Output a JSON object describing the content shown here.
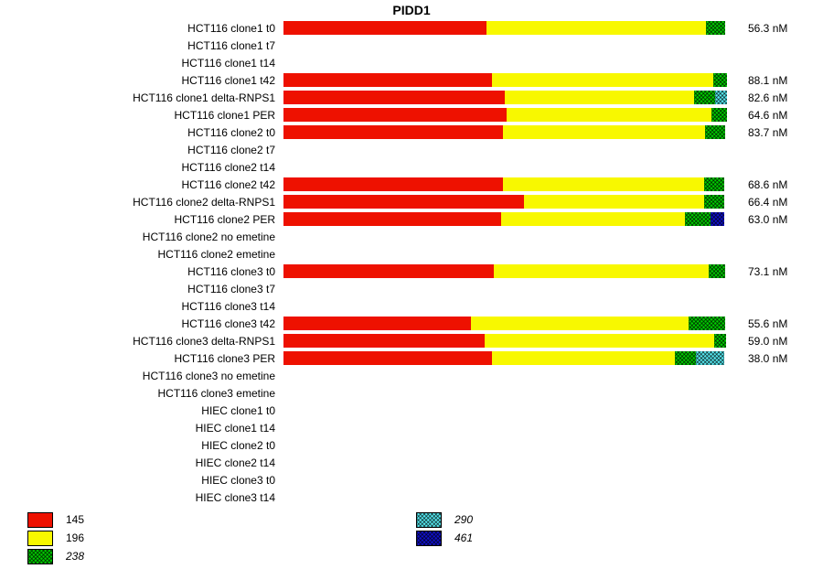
{
  "title": "PIDD1",
  "value_unit": "nM",
  "colors": {
    "red": "#ee1100",
    "yellow": "#f8f800",
    "green": "#00cc00",
    "cyan": "#55e8f0",
    "blue": "#1010cc"
  },
  "patterned_colors": [
    "green",
    "cyan",
    "blue"
  ],
  "legend": {
    "columns": [
      {
        "items": [
          {
            "label": "145",
            "color": "red",
            "pattern": false,
            "italic": false
          },
          {
            "label": "196",
            "color": "yellow",
            "pattern": false,
            "italic": false
          },
          {
            "label": "238",
            "color": "green",
            "pattern": true,
            "italic": true
          }
        ]
      },
      {
        "items": [
          {
            "label": "290",
            "color": "cyan",
            "pattern": true,
            "italic": true
          },
          {
            "label": "461",
            "color": "blue",
            "pattern": true,
            "italic": true
          }
        ]
      }
    ]
  },
  "chart_data": {
    "type": "bar",
    "orientation": "horizontal",
    "stacked": true,
    "title": "PIDD1",
    "series_keys": [
      "145",
      "196",
      "238",
      "290",
      "461"
    ],
    "series_color_map": {
      "145": "red",
      "196": "yellow",
      "238": "green",
      "290": "cyan",
      "461": "blue"
    },
    "note": "segment pct = estimated fraction of full bar track width",
    "rows": [
      {
        "label": "HCT116 clone1 t0",
        "value": 56.3,
        "value_label": "56.3 nM",
        "segments": [
          {
            "series": "145",
            "color": "red",
            "pct": 45.6
          },
          {
            "series": "196",
            "color": "yellow",
            "pct": 49.2
          },
          {
            "series": "238",
            "color": "green",
            "pct": 4.4
          }
        ]
      },
      {
        "label": "HCT116 clone1 t7",
        "value": null,
        "value_label": "",
        "segments": []
      },
      {
        "label": "HCT116 clone1 t14",
        "value": null,
        "value_label": "",
        "segments": []
      },
      {
        "label": "HCT116 clone1 t42",
        "value": 88.1,
        "value_label": "88.1 nM",
        "segments": [
          {
            "series": "145",
            "color": "red",
            "pct": 46.8
          },
          {
            "series": "196",
            "color": "yellow",
            "pct": 49.8
          },
          {
            "series": "238",
            "color": "green",
            "pct": 3.0
          }
        ]
      },
      {
        "label": "HCT116 clone1 delta-RNPS1",
        "value": 82.6,
        "value_label": "82.6 nM",
        "segments": [
          {
            "series": "145",
            "color": "red",
            "pct": 49.7
          },
          {
            "series": "196",
            "color": "yellow",
            "pct": 42.6
          },
          {
            "series": "238",
            "color": "green",
            "pct": 4.6
          },
          {
            "series": "290",
            "color": "cyan",
            "pct": 2.7
          }
        ]
      },
      {
        "label": "HCT116 clone1 PER",
        "value": 64.6,
        "value_label": "64.6 nM",
        "segments": [
          {
            "series": "145",
            "color": "red",
            "pct": 50.1
          },
          {
            "series": "196",
            "color": "yellow",
            "pct": 45.9
          },
          {
            "series": "238",
            "color": "green",
            "pct": 3.6
          }
        ]
      },
      {
        "label": "HCT116 clone2 t0",
        "value": 83.7,
        "value_label": "83.7 nM",
        "segments": [
          {
            "series": "145",
            "color": "red",
            "pct": 49.3
          },
          {
            "series": "196",
            "color": "yellow",
            "pct": 45.3
          },
          {
            "series": "238",
            "color": "green",
            "pct": 4.6
          }
        ]
      },
      {
        "label": "HCT116 clone2 t7",
        "value": null,
        "value_label": "",
        "segments": []
      },
      {
        "label": "HCT116 clone2 t14",
        "value": null,
        "value_label": "",
        "segments": []
      },
      {
        "label": "HCT116 clone2 t42",
        "value": 68.6,
        "value_label": "68.6 nM",
        "segments": [
          {
            "series": "145",
            "color": "red",
            "pct": 49.3
          },
          {
            "series": "196",
            "color": "yellow",
            "pct": 45.1
          },
          {
            "series": "238",
            "color": "green",
            "pct": 4.6
          }
        ]
      },
      {
        "label": "HCT116 clone2 delta-RNPS1",
        "value": 66.4,
        "value_label": "66.4 nM",
        "segments": [
          {
            "series": "145",
            "color": "red",
            "pct": 54.0
          },
          {
            "series": "196",
            "color": "yellow",
            "pct": 40.4
          },
          {
            "series": "238",
            "color": "green",
            "pct": 4.6
          }
        ]
      },
      {
        "label": "HCT116 clone2 PER",
        "value": 63.0,
        "value_label": "63.0 nM",
        "segments": [
          {
            "series": "145",
            "color": "red",
            "pct": 48.9
          },
          {
            "series": "196",
            "color": "yellow",
            "pct": 41.2
          },
          {
            "series": "238",
            "color": "green",
            "pct": 5.8
          },
          {
            "series": "461",
            "color": "blue",
            "pct": 3.1
          }
        ]
      },
      {
        "label": "HCT116 clone2 no emetine",
        "value": null,
        "value_label": "",
        "segments": []
      },
      {
        "label": "HCT116 clone2 emetine",
        "value": null,
        "value_label": "",
        "segments": []
      },
      {
        "label": "HCT116 clone3 t0",
        "value": 73.1,
        "value_label": "73.1 nM",
        "segments": [
          {
            "series": "145",
            "color": "red",
            "pct": 47.2
          },
          {
            "series": "196",
            "color": "yellow",
            "pct": 48.2
          },
          {
            "series": "238",
            "color": "green",
            "pct": 3.7
          }
        ]
      },
      {
        "label": "HCT116 clone3 t7",
        "value": null,
        "value_label": "",
        "segments": []
      },
      {
        "label": "HCT116 clone3 t14",
        "value": null,
        "value_label": "",
        "segments": []
      },
      {
        "label": "HCT116 clone3 t42",
        "value": 55.6,
        "value_label": "55.6 nM",
        "segments": [
          {
            "series": "145",
            "color": "red",
            "pct": 42.1
          },
          {
            "series": "196",
            "color": "yellow",
            "pct": 48.8
          },
          {
            "series": "238",
            "color": "green",
            "pct": 8.2
          }
        ]
      },
      {
        "label": "HCT116 clone3 delta-RNPS1",
        "value": 59.0,
        "value_label": "59.0 nM",
        "segments": [
          {
            "series": "145",
            "color": "red",
            "pct": 45.2
          },
          {
            "series": "196",
            "color": "yellow",
            "pct": 51.6
          },
          {
            "series": "238",
            "color": "green",
            "pct": 2.5
          }
        ]
      },
      {
        "label": "HCT116 clone3 PER",
        "value": 38.0,
        "value_label": "38.0 nM",
        "segments": [
          {
            "series": "145",
            "color": "red",
            "pct": 46.8
          },
          {
            "series": "196",
            "color": "yellow",
            "pct": 41.0
          },
          {
            "series": "238",
            "color": "green",
            "pct": 4.9
          },
          {
            "series": "290",
            "color": "cyan",
            "pct": 6.3
          }
        ]
      },
      {
        "label": "HCT116 clone3 no emetine",
        "value": null,
        "value_label": "",
        "segments": []
      },
      {
        "label": "HCT116 clone3 emetine",
        "value": null,
        "value_label": "",
        "segments": []
      },
      {
        "label": "HIEC clone1 t0",
        "value": null,
        "value_label": "",
        "segments": []
      },
      {
        "label": "HIEC clone1 t14",
        "value": null,
        "value_label": "",
        "segments": []
      },
      {
        "label": "HIEC clone2 t0",
        "value": null,
        "value_label": "",
        "segments": []
      },
      {
        "label": "HIEC clone2 t14",
        "value": null,
        "value_label": "",
        "segments": []
      },
      {
        "label": "HIEC clone3 t0",
        "value": null,
        "value_label": "",
        "segments": []
      },
      {
        "label": "HIEC clone3 t14",
        "value": null,
        "value_label": "",
        "segments": []
      }
    ]
  }
}
